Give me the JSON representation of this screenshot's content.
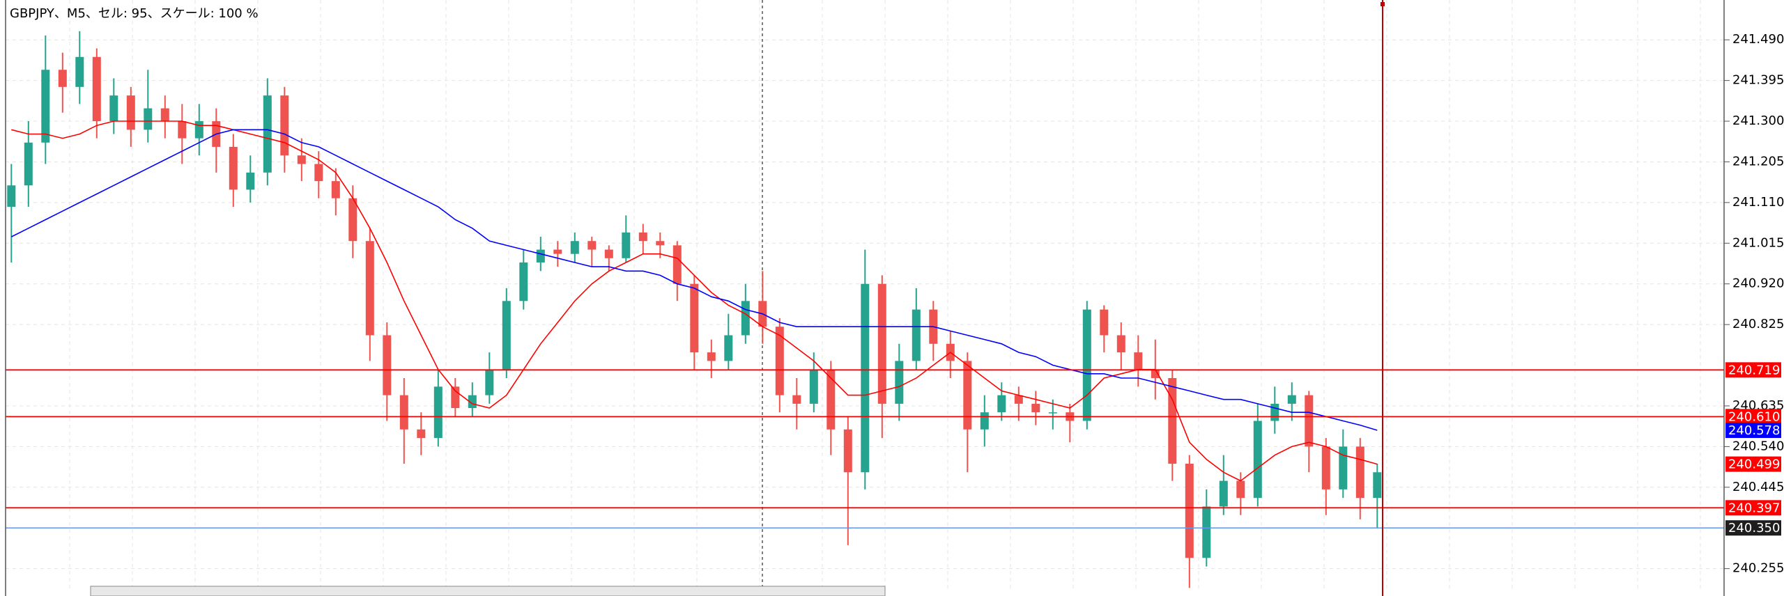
{
  "chart_data": {
    "type": "candlestick",
    "title": "GBPJPY、M5、セル: 95、スケール: 100 %",
    "up_color": "#26a38e",
    "down_color": "#ef5350",
    "ylim": [
      240.191,
      241.583
    ],
    "yticks": [
      {
        "value": 241.49,
        "label": "241.490"
      },
      241.395,
      {
        "value": 241.3,
        "label": "241.300"
      },
      241.205,
      {
        "value": 241.11,
        "label": "241.110"
      },
      241.015,
      {
        "value": 240.92,
        "label": "240.920"
      },
      240.825,
      240.635,
      {
        "value": 240.54,
        "label": "240.540"
      },
      240.445,
      240.255
    ],
    "grid": true,
    "ohlc": [
      [
        241.1,
        241.2,
        240.97,
        241.15
      ],
      [
        241.15,
        241.3,
        241.1,
        241.25
      ],
      [
        241.25,
        241.5,
        241.2,
        241.42
      ],
      [
        241.42,
        241.46,
        241.32,
        241.38
      ],
      [
        241.38,
        241.51,
        241.34,
        241.45
      ],
      [
        241.45,
        241.47,
        241.26,
        241.3
      ],
      [
        241.3,
        241.4,
        241.27,
        241.36
      ],
      [
        241.36,
        241.38,
        241.24,
        241.28
      ],
      [
        241.28,
        241.42,
        241.25,
        241.33
      ],
      [
        241.33,
        241.36,
        241.26,
        241.3
      ],
      [
        241.3,
        241.34,
        241.2,
        241.26
      ],
      [
        241.26,
        241.34,
        241.22,
        241.3
      ],
      [
        241.3,
        241.33,
        241.18,
        241.24
      ],
      [
        241.24,
        241.27,
        241.1,
        241.14
      ],
      [
        241.14,
        241.22,
        241.11,
        241.18
      ],
      [
        241.18,
        241.4,
        241.15,
        241.36
      ],
      [
        241.36,
        241.38,
        241.18,
        241.22
      ],
      [
        241.22,
        241.26,
        241.16,
        241.2
      ],
      [
        241.2,
        241.23,
        241.12,
        241.16
      ],
      [
        241.16,
        241.19,
        241.08,
        241.12
      ],
      [
        241.12,
        241.15,
        240.98,
        241.02
      ],
      [
        241.02,
        241.05,
        240.74,
        240.8
      ],
      [
        240.8,
        240.83,
        240.6,
        240.66
      ],
      [
        240.66,
        240.7,
        240.5,
        240.58
      ],
      [
        240.58,
        240.62,
        240.52,
        240.56
      ],
      [
        240.56,
        240.72,
        240.54,
        240.68
      ],
      [
        240.68,
        240.7,
        240.61,
        240.63
      ],
      [
        240.63,
        240.69,
        240.61,
        240.66
      ],
      [
        240.66,
        240.76,
        240.64,
        240.72
      ],
      [
        240.72,
        240.91,
        240.7,
        240.88
      ],
      [
        240.88,
        241.0,
        240.86,
        240.97
      ],
      [
        240.97,
        241.03,
        240.95,
        241.0
      ],
      [
        241.0,
        241.02,
        240.96,
        240.99
      ],
      [
        240.99,
        241.04,
        240.97,
        241.02
      ],
      [
        241.02,
        241.03,
        240.96,
        241.0
      ],
      [
        241.0,
        241.01,
        240.95,
        240.98
      ],
      [
        240.98,
        241.08,
        240.97,
        241.04
      ],
      [
        241.04,
        241.06,
        240.99,
        241.02
      ],
      [
        241.02,
        241.04,
        240.98,
        241.01
      ],
      [
        241.01,
        241.02,
        240.88,
        240.92
      ],
      [
        240.92,
        240.94,
        240.72,
        240.76
      ],
      [
        240.76,
        240.79,
        240.7,
        240.74
      ],
      [
        240.74,
        240.85,
        240.72,
        240.8
      ],
      [
        240.8,
        240.92,
        240.78,
        240.88
      ],
      [
        240.88,
        240.95,
        240.78,
        240.82
      ],
      [
        240.82,
        240.84,
        240.62,
        240.66
      ],
      [
        240.66,
        240.7,
        240.58,
        240.64
      ],
      [
        240.64,
        240.76,
        240.62,
        240.72
      ],
      [
        240.72,
        240.74,
        240.52,
        240.58
      ],
      [
        240.58,
        240.61,
        240.31,
        240.48
      ],
      [
        240.48,
        241.0,
        240.44,
        240.92
      ],
      [
        240.92,
        240.94,
        240.56,
        240.64
      ],
      [
        240.64,
        240.78,
        240.6,
        240.74
      ],
      [
        240.74,
        240.91,
        240.72,
        240.86
      ],
      [
        240.86,
        240.88,
        240.74,
        240.78
      ],
      [
        240.78,
        240.81,
        240.7,
        240.74
      ],
      [
        240.74,
        240.76,
        240.48,
        240.58
      ],
      [
        240.58,
        240.66,
        240.54,
        240.62
      ],
      [
        240.62,
        240.69,
        240.6,
        240.66
      ],
      [
        240.66,
        240.68,
        240.6,
        240.64
      ],
      [
        240.64,
        240.67,
        240.59,
        240.62
      ],
      [
        240.62,
        240.65,
        240.58,
        240.62
      ],
      [
        240.62,
        240.64,
        240.55,
        240.6
      ],
      [
        240.6,
        240.88,
        240.58,
        240.86
      ],
      [
        240.86,
        240.87,
        240.76,
        240.8
      ],
      [
        240.8,
        240.83,
        240.72,
        240.76
      ],
      [
        240.76,
        240.8,
        240.68,
        240.72
      ],
      [
        240.72,
        240.79,
        240.65,
        240.7
      ],
      [
        240.7,
        240.72,
        240.46,
        240.5
      ],
      [
        240.5,
        240.52,
        240.21,
        240.28
      ],
      [
        240.28,
        240.44,
        240.26,
        240.4
      ],
      [
        240.4,
        240.52,
        240.38,
        240.46
      ],
      [
        240.46,
        240.48,
        240.38,
        240.42
      ],
      [
        240.42,
        240.64,
        240.4,
        240.6
      ],
      [
        240.6,
        240.68,
        240.57,
        240.64
      ],
      [
        240.64,
        240.69,
        240.6,
        240.66
      ],
      [
        240.66,
        240.67,
        240.48,
        240.54
      ],
      [
        240.54,
        240.56,
        240.38,
        240.44
      ],
      [
        240.44,
        240.58,
        240.42,
        240.54
      ],
      [
        240.54,
        240.56,
        240.37,
        240.42
      ],
      [
        240.42,
        240.5,
        240.35,
        240.48
      ]
    ],
    "ma": [
      {
        "color": "#ff0000",
        "values": [
          241.28,
          241.27,
          241.27,
          241.26,
          241.27,
          241.29,
          241.3,
          241.3,
          241.3,
          241.3,
          241.3,
          241.29,
          241.29,
          241.28,
          241.27,
          241.26,
          241.25,
          241.23,
          241.21,
          241.18,
          241.12,
          241.05,
          240.97,
          240.88,
          240.8,
          240.72,
          240.67,
          240.64,
          240.63,
          240.66,
          240.72,
          240.78,
          240.83,
          240.88,
          240.92,
          240.95,
          240.97,
          240.99,
          240.99,
          240.98,
          240.94,
          240.9,
          240.87,
          240.85,
          240.82,
          240.8,
          240.77,
          240.74,
          240.7,
          240.66,
          240.66,
          240.67,
          240.68,
          240.7,
          240.73,
          240.76,
          240.73,
          240.7,
          240.67,
          240.66,
          240.65,
          240.64,
          240.63,
          240.66,
          240.7,
          240.71,
          240.72,
          240.72,
          240.65,
          240.55,
          240.51,
          240.48,
          240.46,
          240.49,
          240.52,
          240.54,
          240.55,
          240.54,
          240.52,
          240.51,
          240.499
        ]
      },
      {
        "color": "#0000ff",
        "values": [
          241.03,
          241.05,
          241.07,
          241.09,
          241.11,
          241.13,
          241.15,
          241.17,
          241.19,
          241.21,
          241.23,
          241.25,
          241.27,
          241.28,
          241.28,
          241.28,
          241.27,
          241.25,
          241.24,
          241.22,
          241.2,
          241.18,
          241.16,
          241.14,
          241.12,
          241.1,
          241.07,
          241.05,
          241.02,
          241.01,
          241.0,
          240.99,
          240.98,
          240.97,
          240.96,
          240.96,
          240.95,
          240.95,
          240.94,
          240.92,
          240.91,
          240.89,
          240.88,
          240.86,
          240.85,
          240.83,
          240.82,
          240.82,
          240.82,
          240.82,
          240.82,
          240.82,
          240.82,
          240.82,
          240.82,
          240.81,
          240.8,
          240.79,
          240.78,
          240.76,
          240.75,
          240.73,
          240.72,
          240.71,
          240.71,
          240.7,
          240.7,
          240.69,
          240.68,
          240.67,
          240.66,
          240.65,
          240.65,
          240.64,
          240.63,
          240.62,
          240.62,
          240.61,
          240.6,
          240.59,
          240.578
        ]
      }
    ],
    "levels": [
      {
        "value": 240.719,
        "color": "#ff0000"
      },
      {
        "value": 240.61,
        "label": "240.610",
        "color": "#ff0000"
      },
      {
        "value": 240.397,
        "color": "#ff0000"
      }
    ],
    "bid": {
      "value": 240.35,
      "label": "240.350",
      "color": "#6495ed",
      "box_color": "#1e1e1e"
    }
  }
}
